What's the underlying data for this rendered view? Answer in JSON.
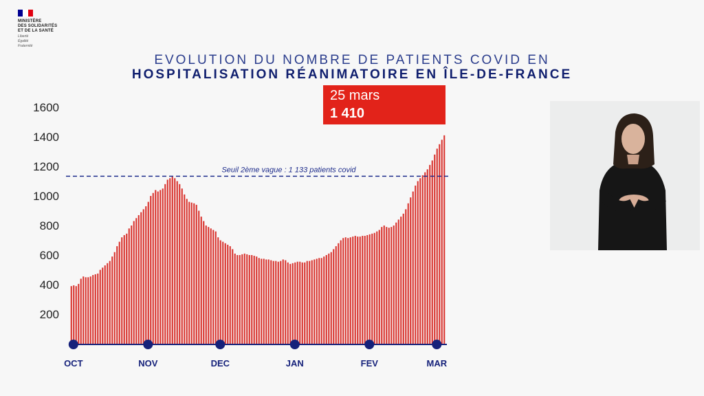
{
  "logo": {
    "lines": [
      "MINISTÈRE",
      "DES SOLIDARITÉS",
      "ET DE LA SANTÉ"
    ],
    "motto": [
      "Liberté",
      "Égalité",
      "Fraternité"
    ],
    "flag_colors": [
      "#000091",
      "#ffffff",
      "#e1000f"
    ]
  },
  "header": {
    "title_line1": "EVOLUTION DU NOMBRE DE PATIENTS COVID EN",
    "title_line2": "HOSPITALISATION RÉANIMATOIRE EN ÎLE-DE-FRANCE"
  },
  "callout": {
    "date": "25 mars",
    "value": "1 410",
    "color": "#e2231a"
  },
  "chart_data": {
    "type": "bar",
    "title": "EVOLUTION DU NOMBRE DE PATIENTS COVID EN HOSPITALISATION RÉANIMATOIRE EN ÎLE-DE-FRANCE",
    "ylim": [
      0,
      1600
    ],
    "yticks": [
      200,
      400,
      600,
      800,
      1000,
      1200,
      1400,
      1600
    ],
    "month_labels": [
      "OCT",
      "NOV",
      "DEC",
      "JAN",
      "FEV",
      "MAR"
    ],
    "bar_color": "#d9332e",
    "axis_color": "#15217a",
    "threshold": {
      "value": 1133,
      "label": "Seuil 2ème vague : 1 133 patients covid"
    },
    "series": [
      {
        "values": [
          390,
          395,
          390,
          405,
          440,
          455,
          450,
          450,
          455,
          465,
          470,
          475,
          500,
          515,
          530,
          545,
          560,
          590,
          620,
          660,
          690,
          720,
          735,
          745,
          780,
          800,
          830,
          850,
          870,
          890,
          910,
          930,
          960,
          1000,
          1020,
          1040,
          1030,
          1040,
          1050,
          1080,
          1110,
          1120,
          1130,
          1120,
          1100,
          1080,
          1050,
          1010,
          980,
          960,
          955,
          950,
          940,
          900,
          860,
          830,
          800,
          790,
          780,
          770,
          760,
          720,
          700,
          690,
          680,
          670,
          660,
          640,
          610,
          600,
          600,
          605,
          610,
          605,
          600,
          600,
          595,
          590,
          580,
          575,
          575,
          570,
          570,
          565,
          560,
          560,
          555,
          560,
          570,
          565,
          550,
          540,
          545,
          550,
          555,
          555,
          550,
          550,
          560,
          560,
          565,
          570,
          575,
          580,
          580,
          590,
          600,
          610,
          620,
          640,
          660,
          680,
          700,
          715,
          720,
          715,
          720,
          725,
          730,
          725,
          725,
          730,
          730,
          735,
          740,
          745,
          750,
          760,
          770,
          790,
          800,
          790,
          785,
          790,
          800,
          820,
          840,
          860,
          880,
          910,
          950,
          990,
          1030,
          1070,
          1100,
          1120,
          1140,
          1160,
          1180,
          1210,
          1240,
          1280,
          1320,
          1350,
          1380,
          1410
        ]
      }
    ]
  }
}
